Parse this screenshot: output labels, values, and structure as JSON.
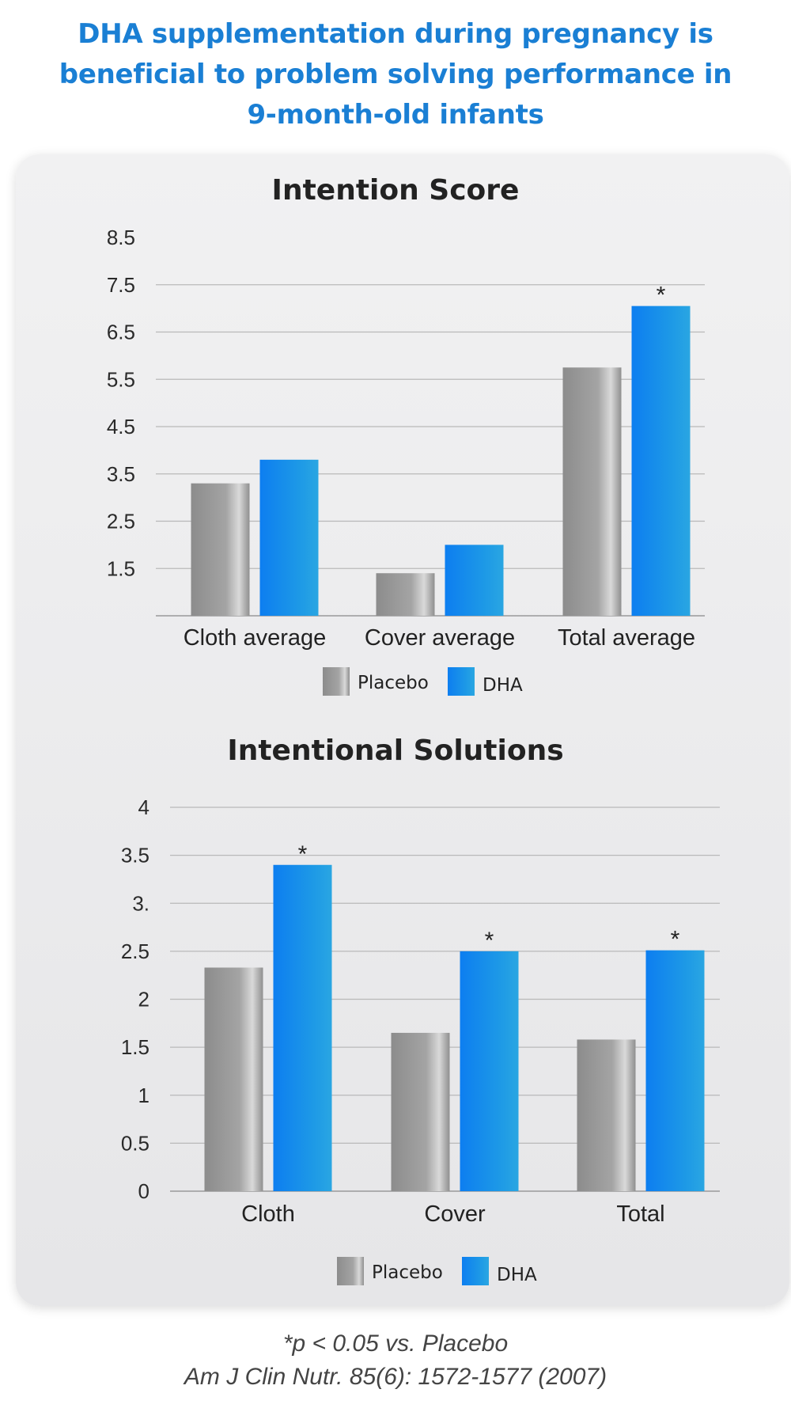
{
  "headline": {
    "line1": "DHA supplementation during pregnancy is",
    "line2": "beneficial to problem solving performance in",
    "line3": "9-month-old infants"
  },
  "colors": {
    "accent": "#1a7fd4",
    "placebo": "#9a9a9a",
    "dha": "#1e90ee"
  },
  "chart_data": [
    {
      "type": "bar",
      "title": "Intention Score",
      "categories": [
        "Cloth average",
        "Cover average",
        "Total average"
      ],
      "series": [
        {
          "name": "Placebo",
          "values": [
            3.3,
            1.4,
            5.75
          ]
        },
        {
          "name": "DHA",
          "values": [
            3.8,
            2.0,
            7.05
          ]
        }
      ],
      "significance": [
        "",
        "",
        "*"
      ],
      "ylim": [
        0.5,
        8.5
      ],
      "yticks": [
        "8.5",
        "7.5",
        "6.5",
        "5.5",
        "4.5",
        "3.5",
        "2.5",
        "1.5"
      ],
      "ytick_values": [
        8.5,
        7.5,
        6.5,
        5.5,
        4.5,
        3.5,
        2.5,
        1.5
      ],
      "grid": true,
      "legend_position": "bottom"
    },
    {
      "type": "bar",
      "title": "Intentional Solutions",
      "categories": [
        "Cloth",
        "Cover",
        "Total"
      ],
      "series": [
        {
          "name": "Placebo",
          "values": [
            2.33,
            1.65,
            1.58
          ]
        },
        {
          "name": "DHA",
          "values": [
            3.4,
            2.5,
            2.51
          ]
        }
      ],
      "significance": [
        "*",
        "*",
        "*"
      ],
      "ylim": [
        0,
        4
      ],
      "yticks": [
        "4",
        "3.5",
        "3.",
        "2.5",
        "2",
        "1.5",
        "1",
        "0.5",
        "0"
      ],
      "ytick_values": [
        4,
        3.5,
        3,
        2.5,
        2,
        1.5,
        1,
        0.5,
        0
      ],
      "grid": true,
      "legend_position": "bottom"
    }
  ],
  "footnote": {
    "significance": "*p < 0.05 vs. Placebo",
    "citation": "Am J Clin Nutr. 85(6): 1572-1577 (2007)"
  }
}
